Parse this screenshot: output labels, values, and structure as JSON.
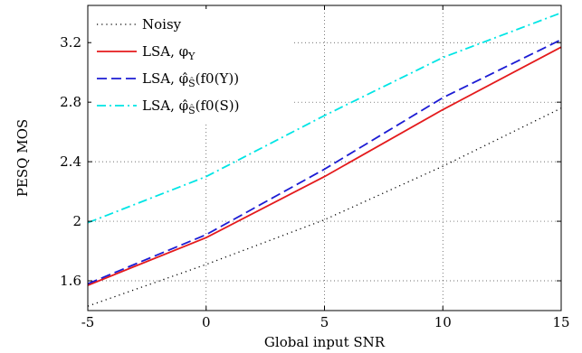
{
  "chart_data": {
    "type": "line",
    "xlabel": "Global input SNR",
    "ylabel": "PESQ MOS",
    "xlim": [
      -5,
      15
    ],
    "ylim": [
      1.4,
      3.45
    ],
    "xticks": [
      "-5",
      "0",
      "5",
      "10",
      "15"
    ],
    "yticks": [
      "1.6",
      "2",
      "2.4",
      "2.8",
      "3.2"
    ],
    "grid": true,
    "legend_position": "top-left",
    "series": [
      {
        "name": "Noisy",
        "legend": {
          "main": "Noisy",
          "sub": ""
        },
        "color": "#000000",
        "style": "dotted",
        "x": [
          -5,
          0,
          5,
          10,
          15
        ],
        "values": [
          1.43,
          1.71,
          2.01,
          2.37,
          2.76
        ]
      },
      {
        "name": "LSA, φY",
        "legend": {
          "main": "LSA, φ",
          "sub": "Y"
        },
        "color": "#e41a1c",
        "style": "solid",
        "x": [
          -5,
          0,
          5,
          10,
          15
        ],
        "values": [
          1.57,
          1.89,
          2.3,
          2.75,
          3.17
        ]
      },
      {
        "name": "LSA, φ̂S(f0(Y))",
        "legend": {
          "main": "LSA, φ̂",
          "sub": "Ŝ",
          "tail": "(f0(Y))"
        },
        "color": "#1c1cd4",
        "style": "dashed",
        "x": [
          -5,
          0,
          5,
          10,
          15
        ],
        "values": [
          1.58,
          1.91,
          2.35,
          2.83,
          3.22
        ]
      },
      {
        "name": "LSA, φ̂S(f0(S))",
        "legend": {
          "main": "LSA, φ̂",
          "sub": "Ŝ",
          "tail": "(f0(S))"
        },
        "color": "#00e5e5",
        "style": "dashdot",
        "x": [
          -5,
          0,
          5,
          10,
          15
        ],
        "values": [
          1.99,
          2.3,
          2.71,
          3.1,
          3.4
        ]
      }
    ]
  }
}
